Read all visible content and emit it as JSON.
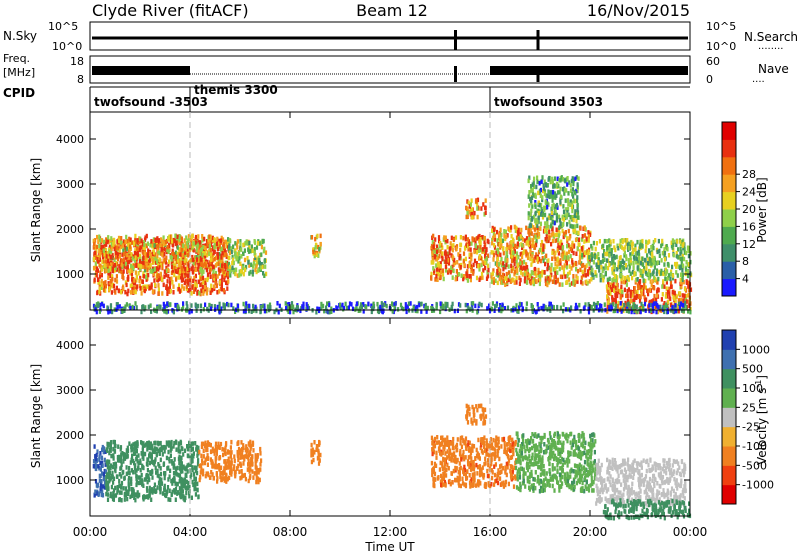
{
  "header": {
    "station": "Clyde River (fitACF)",
    "beam": "Beam 12",
    "date": "16/Nov/2015"
  },
  "top_panels": {
    "nsky_label": "N.Sky",
    "nsky_ticks": [
      "10^5",
      "10^0"
    ],
    "nsky_right_ticks": [
      "10^5",
      "10^0"
    ],
    "nsearch_label": "N.Search",
    "freq_label": "Freq.",
    "freq_unit": "[MHz]",
    "freq_ticks": [
      "18",
      "8"
    ],
    "nave_ticks": [
      "60",
      "0"
    ],
    "nave_label": "Nave",
    "cpid_label": "CPID"
  },
  "cpid_segments": [
    {
      "label": "twofsound -3503",
      "start_h": 0.0,
      "end_h": 4.0
    },
    {
      "label": "themis 3300",
      "start_h": 4.0,
      "end_h": 16.0
    },
    {
      "label": "twofsound 3503",
      "start_h": 16.0,
      "end_h": 24.0
    }
  ],
  "axes": {
    "y_label": "Slant Range [km]",
    "y_ticks": [
      "1000",
      "2000",
      "3000",
      "4000"
    ],
    "x_ticks": [
      "00:00",
      "04:00",
      "08:00",
      "12:00",
      "16:00",
      "20:00",
      "00:00"
    ],
    "x_label": "Time UT"
  },
  "power_bar": {
    "label": "Power [dB]",
    "ticks": [
      "4",
      "8",
      "12",
      "16",
      "20",
      "24",
      "28"
    ],
    "colors": [
      "#1a1aff",
      "#2a5fa8",
      "#3f8f6a",
      "#4faa4f",
      "#8fd04a",
      "#e8d020",
      "#f5a020",
      "#f07010",
      "#e83010",
      "#e00000"
    ]
  },
  "velocity_bar": {
    "label": "Velocity [m s^-1]",
    "ticks": [
      "1000",
      "500",
      "100",
      "25",
      "-25",
      "-100",
      "-500",
      "-1000"
    ],
    "colors": [
      "#2040b0",
      "#3f70b0",
      "#3f9060",
      "#60b050",
      "#c0c0c0",
      "#f0b030",
      "#f08020",
      "#f04010",
      "#e00000"
    ]
  },
  "chart_data": {
    "type": "heatmap",
    "title": "Clyde River (fitACF)",
    "xlabel": "Time UT",
    "ylabel": "Slant Range [km]",
    "xlim": [
      0,
      24
    ],
    "ylim": [
      200,
      4600
    ],
    "panels": [
      {
        "name": "Power [dB]",
        "regions": [
          {
            "t0": 0.1,
            "t1": 5.5,
            "r0": 600,
            "r1": 1800,
            "value": 28
          },
          {
            "t0": 0.1,
            "t1": 5.5,
            "r0": 1100,
            "r1": 1900,
            "value": 22
          },
          {
            "t0": 5.5,
            "t1": 7.0,
            "r0": 1000,
            "r1": 1800,
            "value": 14
          },
          {
            "t0": 8.8,
            "t1": 9.2,
            "r0": 1400,
            "r1": 1900,
            "value": 18
          },
          {
            "t0": 13.6,
            "t1": 15.9,
            "r0": 900,
            "r1": 1900,
            "value": 24
          },
          {
            "t0": 15.0,
            "t1": 15.8,
            "r0": 2300,
            "r1": 2700,
            "value": 26
          },
          {
            "t0": 16.0,
            "t1": 20.0,
            "r0": 800,
            "r1": 2100,
            "value": 22
          },
          {
            "t0": 17.5,
            "t1": 19.5,
            "r0": 2100,
            "r1": 3200,
            "value": 10
          },
          {
            "t0": 20.6,
            "t1": 24.0,
            "r0": 200,
            "r1": 900,
            "value": 28
          },
          {
            "t0": 20.0,
            "t1": 24.0,
            "r0": 900,
            "r1": 1800,
            "value": 12
          },
          {
            "t0": 0.1,
            "t1": 24.0,
            "r0": 200,
            "r1": 400,
            "value": 6
          }
        ]
      },
      {
        "name": "Velocity [m s^-1]",
        "regions": [
          {
            "t0": 0.1,
            "t1": 0.6,
            "r0": 700,
            "r1": 1800,
            "value": 900
          },
          {
            "t0": 0.6,
            "t1": 4.3,
            "r0": 600,
            "r1": 1900,
            "value": 300
          },
          {
            "t0": 4.3,
            "t1": 6.8,
            "r0": 1000,
            "r1": 1900,
            "value": -300
          },
          {
            "t0": 8.8,
            "t1": 9.2,
            "r0": 1400,
            "r1": 1900,
            "value": -300
          },
          {
            "t0": 13.6,
            "t1": 17.0,
            "r0": 900,
            "r1": 2000,
            "value": -400
          },
          {
            "t0": 17.0,
            "t1": 20.2,
            "r0": 800,
            "r1": 2100,
            "value": 80
          },
          {
            "t0": 15.0,
            "t1": 15.8,
            "r0": 2300,
            "r1": 2700,
            "value": -300
          },
          {
            "t0": 20.2,
            "t1": 23.8,
            "r0": 500,
            "r1": 1500,
            "value": 0
          },
          {
            "t0": 20.5,
            "t1": 24.0,
            "r0": 200,
            "r1": 600,
            "value": 150
          }
        ]
      }
    ]
  }
}
